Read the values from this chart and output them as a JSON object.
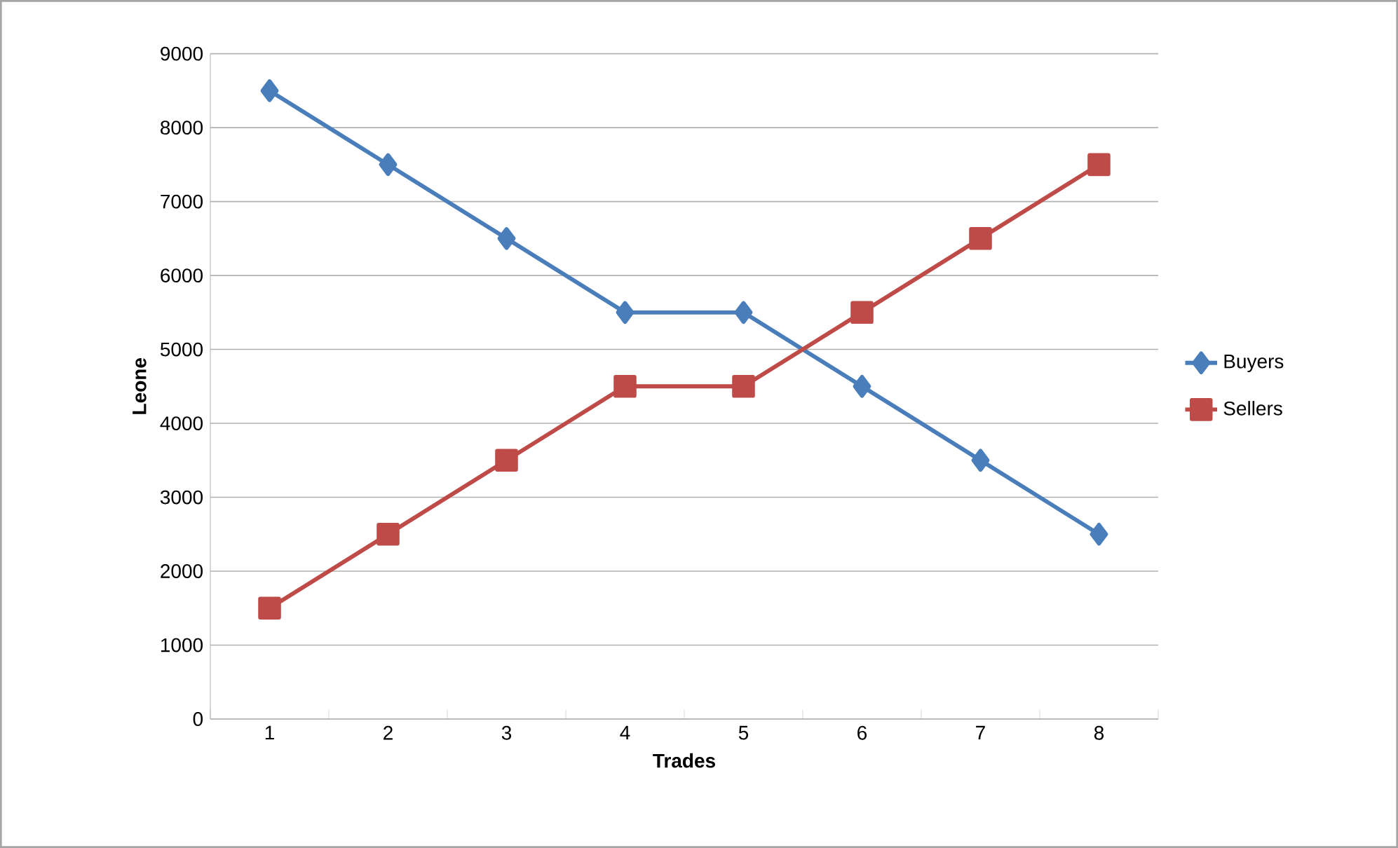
{
  "chart_data": {
    "type": "line",
    "xlabel": "Trades",
    "ylabel": "Leone",
    "categories": [
      "1",
      "2",
      "3",
      "4",
      "5",
      "6",
      "7",
      "8"
    ],
    "series": [
      {
        "name": "Buyers",
        "color": "#4a7ebb",
        "marker": "diamond",
        "values": [
          8500,
          7500,
          6500,
          5500,
          5500,
          4500,
          3500,
          2500
        ]
      },
      {
        "name": "Sellers",
        "color": "#be4b48",
        "marker": "square",
        "values": [
          1500,
          2500,
          3500,
          4500,
          4500,
          5500,
          6500,
          7500
        ]
      }
    ],
    "ylim": [
      0,
      9000
    ],
    "yticks": [
      0,
      1000,
      2000,
      3000,
      4000,
      5000,
      6000,
      7000,
      8000,
      9000
    ],
    "grid": "y",
    "legend": "right",
    "line_style": "solid"
  }
}
